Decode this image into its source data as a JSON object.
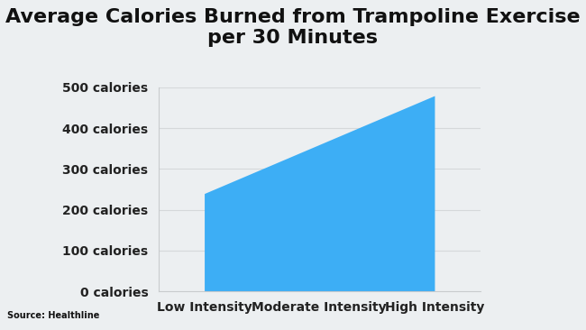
{
  "chart_data": {
    "type": "area",
    "title": "Average Calories Burned from Trampoline Exercise per 30 Minutes",
    "annotations": [
      "Source: Healthline"
    ],
    "categories": [
      "Low Intensity",
      "Moderate Intensity",
      "High Intensity"
    ],
    "values": [
      240,
      360,
      480
    ],
    "color": "#3daef5",
    "ylim": [
      0,
      500
    ],
    "yticks": [
      {
        "value": 0,
        "label": "0 calories"
      },
      {
        "value": 100,
        "label": "100 calories"
      },
      {
        "value": 200,
        "label": "200 calories"
      },
      {
        "value": 300,
        "label": "300 calories"
      },
      {
        "value": 400,
        "label": "400 calories"
      },
      {
        "value": 500,
        "label": "500 calories"
      }
    ],
    "grid": true
  }
}
